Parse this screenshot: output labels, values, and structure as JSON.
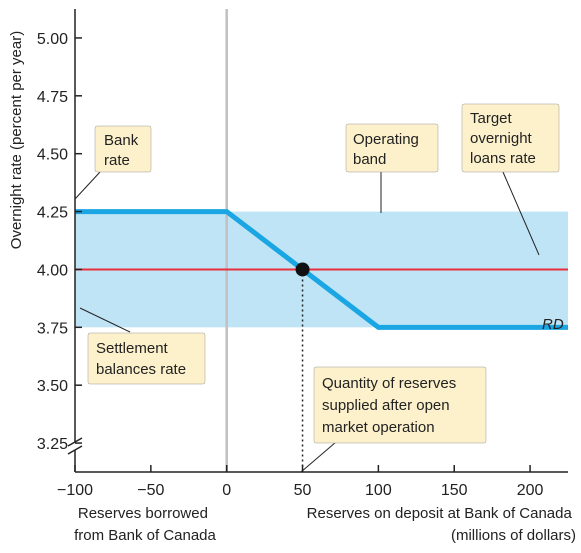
{
  "chart_data": {
    "type": "line",
    "title": "",
    "ylabel": "Overnight rate (percent per year)",
    "xlabel_left": [
      "Reserves borrowed",
      "from Bank of Canada"
    ],
    "xlabel_right": [
      "Reserves on deposit at Bank of Canada",
      "(millions of dollars)"
    ],
    "xlim": [
      -100,
      225
    ],
    "ylim": [
      3.125,
      5.125
    ],
    "x_ticks": [
      -100,
      -50,
      0,
      50,
      100,
      150,
      200
    ],
    "x_tick_labels": [
      "−100",
      "−50",
      "0",
      "50",
      "100",
      "150",
      "200"
    ],
    "y_ticks": [
      3.25,
      3.5,
      3.75,
      4.0,
      4.25,
      4.5,
      4.75,
      5.0
    ],
    "y_tick_labels": [
      "3.25",
      "3.50",
      "3.75",
      "4.00",
      "4.25",
      "4.50",
      "4.75",
      "5.00"
    ],
    "axis_break": true,
    "grid": false,
    "band": {
      "ymin": 3.75,
      "ymax": 4.25,
      "color": "#bfe4f6"
    },
    "target_rate": {
      "y": 4.0,
      "color": "#e8303a"
    },
    "vertical_zero_line": {
      "x": 0,
      "color": "#c0c0c0"
    },
    "series": [
      {
        "name": "RD",
        "color": "#1aa5e3",
        "x": [
          -100,
          0,
          100,
          225
        ],
        "y": [
          4.25,
          4.25,
          3.75,
          3.75
        ]
      }
    ],
    "equilibrium_point": {
      "x": 50,
      "y": 4.0
    },
    "annotations": {
      "bank_rate": [
        "Bank",
        "rate"
      ],
      "operating_band": [
        "Operating",
        "band"
      ],
      "target": [
        "Target",
        "overnight",
        "loans rate"
      ],
      "settlement": [
        "Settlement",
        "balances rate"
      ],
      "quantity": [
        "Quantity of reserves",
        "supplied after open",
        "market operation"
      ]
    },
    "callout_color": "#fdf1cc"
  }
}
